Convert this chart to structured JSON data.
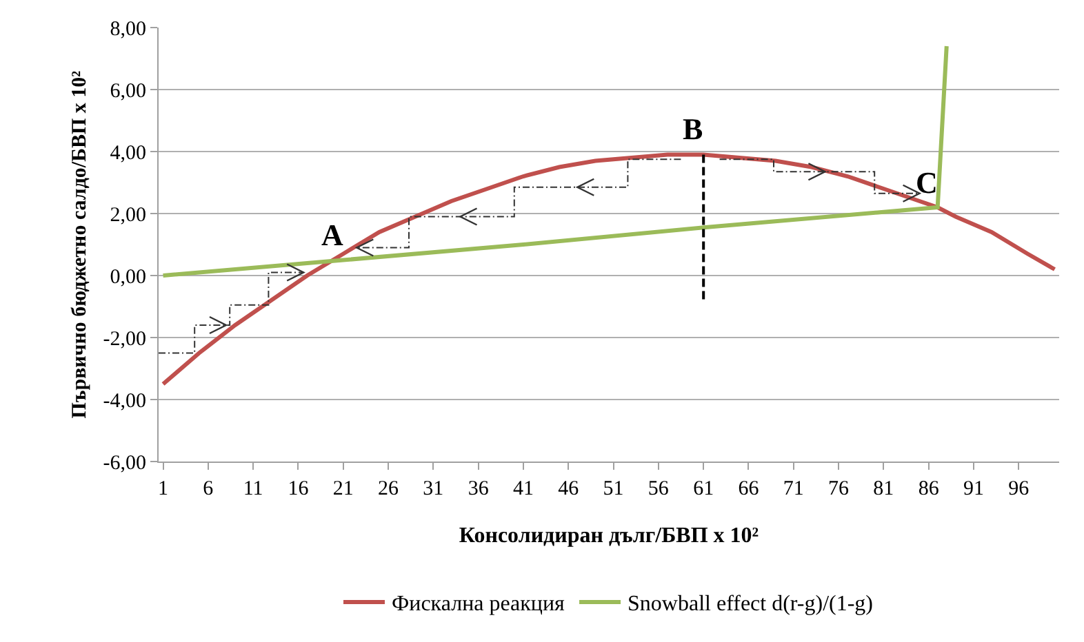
{
  "chart_data": {
    "type": "line",
    "xlabel": "Консолидиран дълг/БВП x 10²",
    "ylabel": "Първично бюджетно салдо/БВП x 10²",
    "xlim": [
      0.5,
      100.5
    ],
    "xticks": [
      1,
      6,
      11,
      16,
      21,
      26,
      31,
      36,
      41,
      46,
      51,
      56,
      61,
      66,
      71,
      76,
      81,
      86,
      91,
      96
    ],
    "ylim": [
      -6,
      8
    ],
    "yticks": [
      {
        "value": -6,
        "label": "-6,00"
      },
      {
        "value": -4,
        "label": "-4,00"
      },
      {
        "value": -2,
        "label": "-2,00"
      },
      {
        "value": 0,
        "label": "0,00"
      },
      {
        "value": 2,
        "label": "2,00"
      },
      {
        "value": 4,
        "label": "4,00"
      },
      {
        "value": 6,
        "label": "6,00"
      },
      {
        "value": 8,
        "label": "8,00"
      }
    ],
    "grid": "y",
    "legend": "bottom",
    "line_style": "solid",
    "marker": "none",
    "series": [
      {
        "name": "Фискална реакция",
        "color": "#c0504d",
        "x": [
          1,
          5,
          9,
          13,
          17,
          21,
          25,
          29,
          33,
          37,
          41,
          45,
          49,
          53,
          57,
          61,
          65,
          69,
          73,
          77,
          81,
          85,
          87,
          89,
          93,
          97,
          100
        ],
        "values": [
          -3.5,
          -2.5,
          -1.6,
          -0.8,
          0.0,
          0.7,
          1.4,
          1.9,
          2.4,
          2.8,
          3.2,
          3.5,
          3.7,
          3.8,
          3.9,
          3.9,
          3.8,
          3.7,
          3.5,
          3.2,
          2.8,
          2.4,
          2.2,
          1.9,
          1.4,
          0.7,
          0.2
        ]
      },
      {
        "name": "Snowball effect d(r-g)/(1-g)",
        "color": "#9bbb59",
        "x": [
          1,
          21,
          41,
          61,
          81,
          87,
          88
        ],
        "values": [
          0.0,
          0.5,
          1.0,
          1.55,
          2.05,
          2.2,
          7.4
        ]
      }
    ],
    "annotations": [
      {
        "text": "A",
        "x": 21,
        "y": 0.5
      },
      {
        "text": "B",
        "x": 61,
        "y": 3.9
      },
      {
        "text": "C",
        "x": 87,
        "y": 2.2
      }
    ]
  }
}
